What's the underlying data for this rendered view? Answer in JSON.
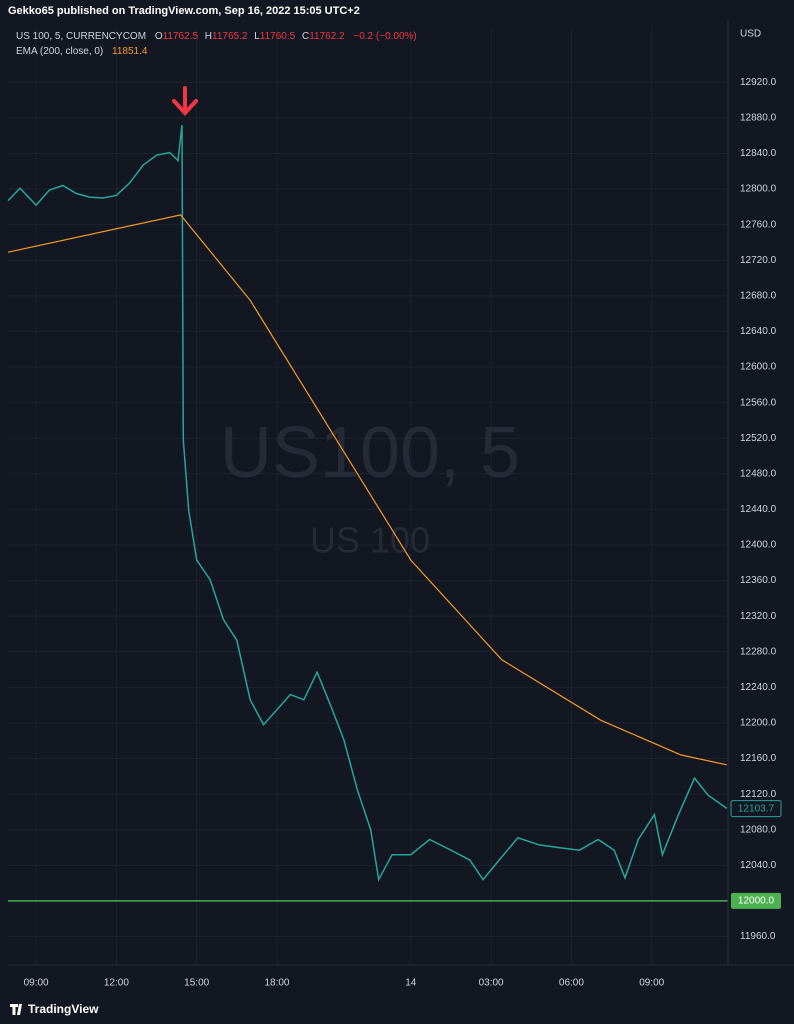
{
  "header": {
    "text": "Gekko65 published on TradingView.com, Sep 16, 2022 15:05 UTC+2"
  },
  "chart_data": {
    "type": "line",
    "currency": "USD",
    "watermark": {
      "title": "US100, 5",
      "subtitle": "US 100"
    },
    "ohlc": {
      "open_label": "O",
      "open": 11762.5,
      "high_label": "H",
      "high": 11765.2,
      "low_label": "L",
      "low": 11760.5,
      "close_label": "C",
      "close": 11762.2,
      "change": "−0.2 (−0.00%)"
    },
    "ema_value": 11851.4,
    "series": [
      {
        "name": "US 100, 5, CURRENCYCOM",
        "color": "#26a69a",
        "x": [
          7.95,
          8.4,
          9.0,
          9.5,
          10.0,
          10.5,
          11.0,
          11.5,
          12.0,
          12.5,
          13.0,
          13.5,
          14.0,
          14.3,
          14.45,
          14.5,
          14.7,
          15.0,
          15.5,
          16.0,
          16.5,
          17.0,
          17.5,
          18.0,
          18.5,
          19.0,
          19.5,
          20.0,
          20.5,
          21.0,
          21.5,
          21.8,
          22.3,
          23.0,
          23.7,
          24.5,
          25.2,
          25.7,
          26.3,
          27.0,
          27.8,
          28.5,
          29.3,
          30.0,
          30.6,
          31.0,
          31.5,
          32.1,
          32.4,
          33.0,
          33.6,
          34.1,
          34.8
        ],
        "values": [
          12787,
          12801,
          12782,
          12799,
          12804,
          12795,
          12791,
          12790,
          12793,
          12807,
          12827,
          12838,
          12841,
          12832,
          12872,
          12518,
          12439,
          12383,
          12361,
          12316,
          12293,
          12226,
          12198,
          12215,
          12232,
          12226,
          12257,
          12220,
          12181,
          12125,
          12080,
          12024,
          12052,
          12052,
          12069,
          12057,
          12046,
          12024,
          12046,
          12071,
          12063,
          12060,
          12057,
          12069,
          12057,
          12026,
          12069,
          12097,
          12052,
          12097,
          12138,
          12119,
          12104
        ]
      },
      {
        "name": "EMA (200, close, 0)",
        "color": "#f59a23",
        "x": [
          7.95,
          14.4,
          17.0,
          20.0,
          23.0,
          26.4,
          30.1,
          33.1,
          34.8
        ],
        "values": [
          12729,
          12771,
          12675,
          12529,
          12383,
          12271,
          12203,
          12164,
          12153
        ]
      }
    ],
    "last_price": 12103.7,
    "hline": {
      "value": 12000,
      "label": "12000.0",
      "color": "#4caf50"
    },
    "xlim": [
      7.95,
      34.85
    ],
    "xticks": [
      {
        "value": 9,
        "label": "09:00"
      },
      {
        "value": 12,
        "label": "12:00"
      },
      {
        "value": 15,
        "label": "15:00"
      },
      {
        "value": 18,
        "label": "18:00"
      },
      {
        "value": 23,
        "label": "14"
      },
      {
        "value": 26,
        "label": "03:00"
      },
      {
        "value": 29,
        "label": "06:00"
      },
      {
        "value": 32,
        "label": "09:00"
      }
    ],
    "ylim": [
      11928,
      12981
    ],
    "yticks": [
      {
        "value": 11960,
        "label": "11960.0"
      },
      {
        "value": 12040,
        "label": "12040.0"
      },
      {
        "value": 12080,
        "label": "12080.0"
      },
      {
        "value": 12120,
        "label": "12120.0"
      },
      {
        "value": 12160,
        "label": "12160.0"
      },
      {
        "value": 12200,
        "label": "12200.0"
      },
      {
        "value": 12240,
        "label": "12240.0"
      },
      {
        "value": 12280,
        "label": "12280.0"
      },
      {
        "value": 12320,
        "label": "12320.0"
      },
      {
        "value": 12360,
        "label": "12360.0"
      },
      {
        "value": 12400,
        "label": "12400.0"
      },
      {
        "value": 12440,
        "label": "12440.0"
      },
      {
        "value": 12480,
        "label": "12480.0"
      },
      {
        "value": 12520,
        "label": "12520.0"
      },
      {
        "value": 12560,
        "label": "12560.0"
      },
      {
        "value": 12600,
        "label": "12600.0"
      },
      {
        "value": 12640,
        "label": "12640.0"
      },
      {
        "value": 12680,
        "label": "12680.0"
      },
      {
        "value": 12720,
        "label": "12720.0"
      },
      {
        "value": 12760,
        "label": "12760.0"
      },
      {
        "value": 12800,
        "label": "12800.0"
      },
      {
        "value": 12840,
        "label": "12840.0"
      },
      {
        "value": 12880,
        "label": "12880.0"
      },
      {
        "value": 12920,
        "label": "12920.0"
      }
    ],
    "grid": true
  },
  "footer": {
    "brand": "TradingView"
  }
}
